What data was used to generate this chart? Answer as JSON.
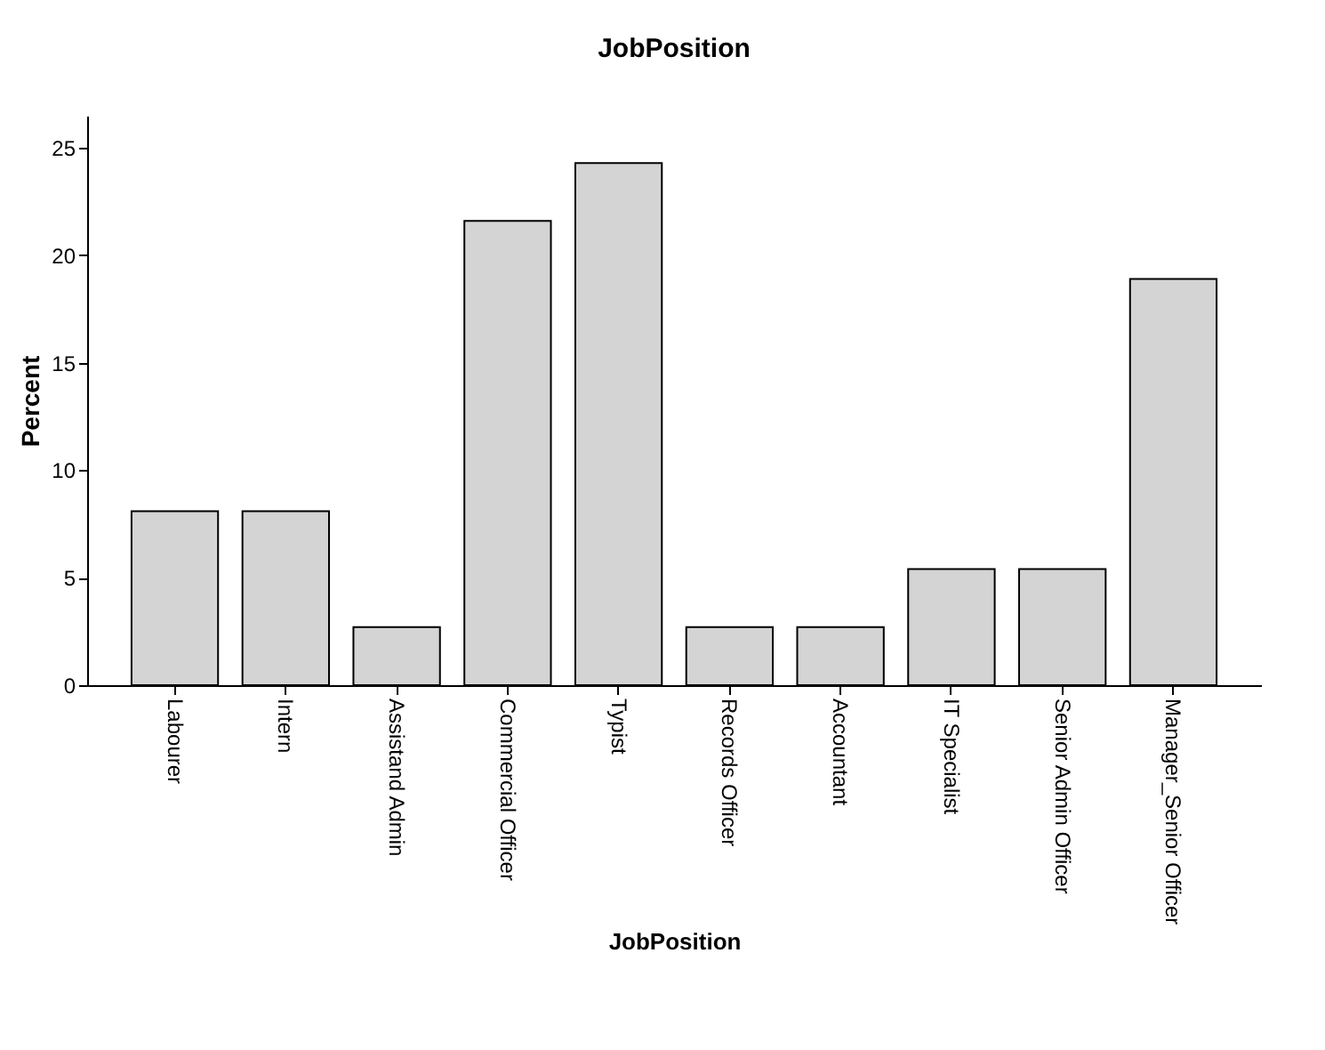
{
  "chart_data": {
    "type": "bar",
    "title": "JobPosition",
    "xlabel": "JobPosition",
    "ylabel": "Percent",
    "categories": [
      "Labourer",
      "Intern",
      "Assistand Admin",
      "Commercial Officer",
      "Typist",
      "Records Officer",
      "Accountant",
      "IT Specialist",
      "Senior Admin Officer",
      "Manager_Senior Officer"
    ],
    "values": [
      8.1,
      8.1,
      2.7,
      21.6,
      24.3,
      2.7,
      2.7,
      5.4,
      5.4,
      18.9
    ],
    "color": "#d4d4d4",
    "ylim": [
      0,
      26.5
    ],
    "yticks": [
      0,
      5,
      10,
      15,
      20,
      25
    ],
    "grid": false
  }
}
